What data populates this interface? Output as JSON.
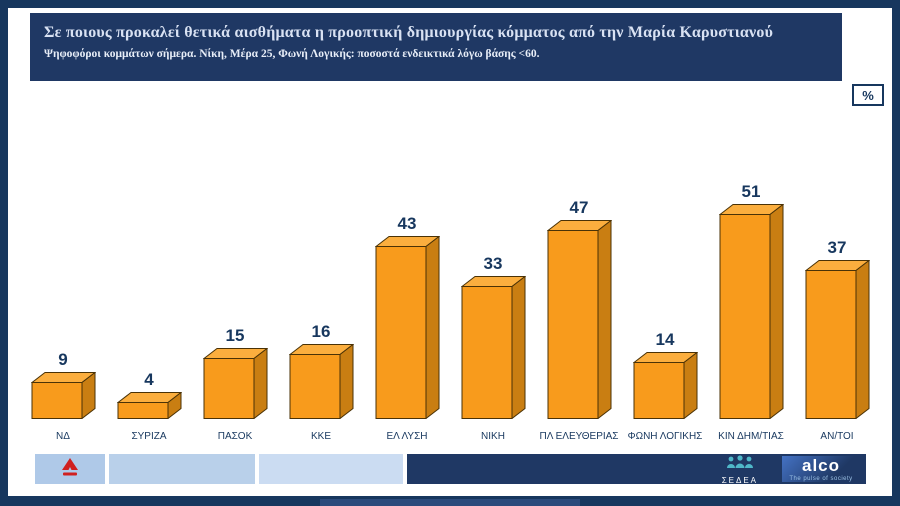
{
  "header": {
    "title": "Σε ποιους προκαλεί θετικά αισθήματα η προοπτική δημιουργίας κόμματος από την Μαρία Καρυστιανού",
    "subtitle": "Ψηφοφόροι κομμάτων σήμερα. Νίκη, Μέρα 25, Φωνή Λογικής: ποσοστά ενδεικτικά λόγω βάσης <60.",
    "unit_badge": "%"
  },
  "chart_data": {
    "type": "bar",
    "categories": [
      "ΝΔ",
      "ΣΥΡΙΖΑ",
      "ΠΑΣΟΚ",
      "ΚΚΕ",
      "ΕΛ ΛΥΣΗ",
      "ΝΙΚΗ",
      "ΠΛ ΕΛΕΥΘΕΡΙΑΣ",
      "ΦΩΝΗ ΛΟΓΙΚΗΣ",
      "ΚΙΝ ΔΗΜ/ΤΙΑΣ",
      "ΑΝ/ΤΟΙ"
    ],
    "values": [
      9,
      4,
      15,
      16,
      43,
      33,
      47,
      14,
      51,
      37
    ],
    "title": "Σε ποιους προκαλεί θετικά αισθήματα η προοπτική δημιουργίας κόμματος από την Μαρία Καρυστιανού",
    "xlabel": "",
    "ylabel": "%",
    "ylim": [
      0,
      60
    ],
    "legend": "none",
    "grid": "off",
    "bar_color": "#F89B1C",
    "bar_top_color": "#FBAE3E",
    "bar_side_color": "#C97E12",
    "bar_stroke_color": "#4A3206",
    "value_label_color": "#17375E"
  },
  "footer": {
    "sedea_label": "ΣΕΔΕΑ",
    "alco_label": "alco",
    "alco_tagline": "The pulse of society"
  },
  "colors": {
    "frame": "#17375E",
    "header_bg": "#1F3864",
    "title_text": "#D9E2F3",
    "strip_light_blue": "#B9D0EA",
    "channel_logo_red": "#D0201F"
  }
}
